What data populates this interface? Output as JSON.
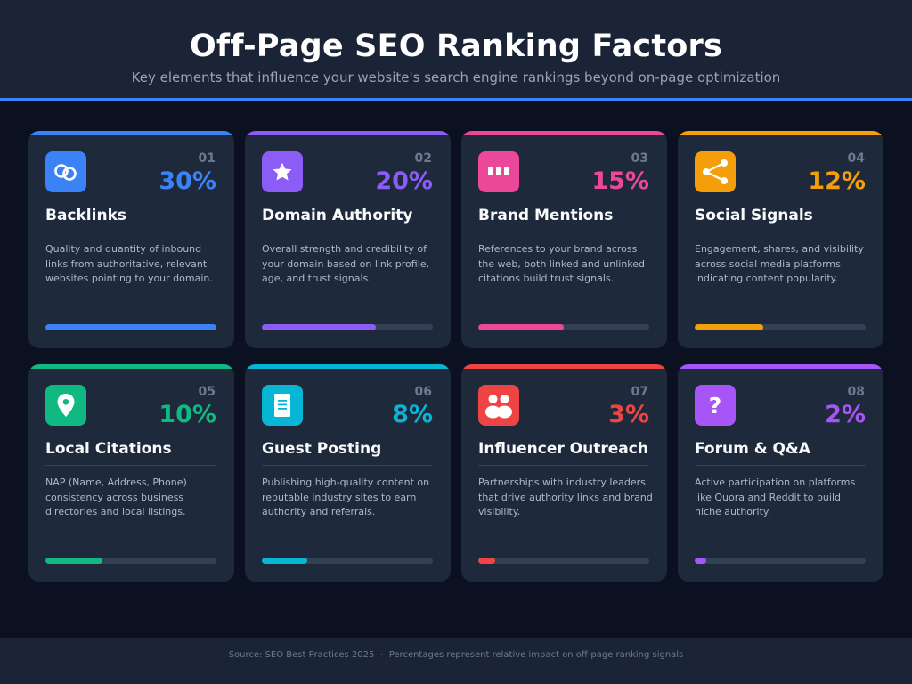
{
  "header": {
    "title": "Off-Page SEO Ranking Factors",
    "subtitle": "Key elements that influence your website's search engine rankings beyond on-page optimization"
  },
  "cards": [
    {
      "num": "01",
      "pct": "30%",
      "value": 30,
      "name": "Backlinks",
      "icon": "link-icon",
      "color": "#3b82f6",
      "desc": "Quality and quantity of inbound links from authoritative, relevant websites pointing to your domain."
    },
    {
      "num": "02",
      "pct": "20%",
      "value": 20,
      "name": "Domain Authority",
      "icon": "star-icon",
      "color": "#8b5cf6",
      "desc": "Overall strength and credibility of your domain based on link profile, age, and trust signals."
    },
    {
      "num": "03",
      "pct": "15%",
      "value": 15,
      "name": "Brand Mentions",
      "icon": "mention-icon",
      "color": "#ec4899",
      "desc": "References to your brand across the web, both linked and unlinked citations build trust signals."
    },
    {
      "num": "04",
      "pct": "12%",
      "value": 12,
      "name": "Social Signals",
      "icon": "share-icon",
      "color": "#f59e0b",
      "desc": "Engagement, shares, and visibility across social media platforms indicating content popularity."
    },
    {
      "num": "05",
      "pct": "10%",
      "value": 10,
      "name": "Local Citations",
      "icon": "location-pin-icon",
      "color": "#10b981",
      "desc": "NAP (Name, Address, Phone) consistency across business directories and local listings."
    },
    {
      "num": "06",
      "pct": "8%",
      "value": 8,
      "name": "Guest Posting",
      "icon": "document-icon",
      "color": "#06b6d4",
      "desc": "Publishing high-quality content on reputable industry sites to earn authority and referrals."
    },
    {
      "num": "07",
      "pct": "3%",
      "value": 3,
      "name": "Influencer Outreach",
      "icon": "people-icon",
      "color": "#ef4444",
      "desc": "Partnerships with industry leaders that drive authority links and brand visibility."
    },
    {
      "num": "08",
      "pct": "2%",
      "value": 2,
      "name": "Forum & Q&A",
      "icon": "question-icon",
      "color": "#a855f7",
      "desc": "Active participation on platforms like Quora and Reddit to build niche authority."
    }
  ],
  "footer": {
    "text": "Source: SEO Best Practices 2025  -  Percentages represent relative impact on off-page ranking signals"
  }
}
